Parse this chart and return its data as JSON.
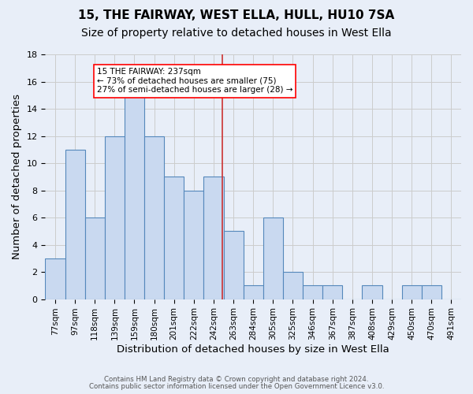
{
  "title": "15, THE FAIRWAY, WEST ELLA, HULL, HU10 7SA",
  "subtitle": "Size of property relative to detached houses in West Ella",
  "xlabel": "Distribution of detached houses by size in West Ella",
  "ylabel": "Number of detached properties",
  "footnote1": "Contains HM Land Registry data © Crown copyright and database right 2024.",
  "footnote2": "Contains public sector information licensed under the Open Government Licence v3.0.",
  "bin_labels": [
    "77sqm",
    "97sqm",
    "118sqm",
    "139sqm",
    "159sqm",
    "180sqm",
    "201sqm",
    "222sqm",
    "242sqm",
    "263sqm",
    "284sqm",
    "305sqm",
    "325sqm",
    "346sqm",
    "367sqm",
    "387sqm",
    "408sqm",
    "429sqm",
    "450sqm",
    "470sqm",
    "491sqm"
  ],
  "bar_values": [
    3,
    11,
    6,
    12,
    15,
    12,
    9,
    8,
    9,
    5,
    1,
    6,
    2,
    1,
    1,
    0,
    1,
    0,
    1,
    1,
    0
  ],
  "bar_color": "#c9d9f0",
  "bar_edge_color": "#5588bb",
  "grid_color": "#cccccc",
  "annotation_text": "15 THE FAIRWAY: 237sqm\n← 73% of detached houses are smaller (75)\n27% of semi-detached houses are larger (28) →",
  "annotation_box_color": "white",
  "annotation_box_edge_color": "red",
  "vline_x_index": 8.45,
  "vline_color": "#cc3333",
  "ylim": [
    0,
    18
  ],
  "yticks": [
    0,
    2,
    4,
    6,
    8,
    10,
    12,
    14,
    16,
    18
  ],
  "background_color": "#e8eef8",
  "title_fontsize": 11,
  "subtitle_fontsize": 10,
  "xlabel_fontsize": 9.5,
  "ylabel_fontsize": 9.5
}
